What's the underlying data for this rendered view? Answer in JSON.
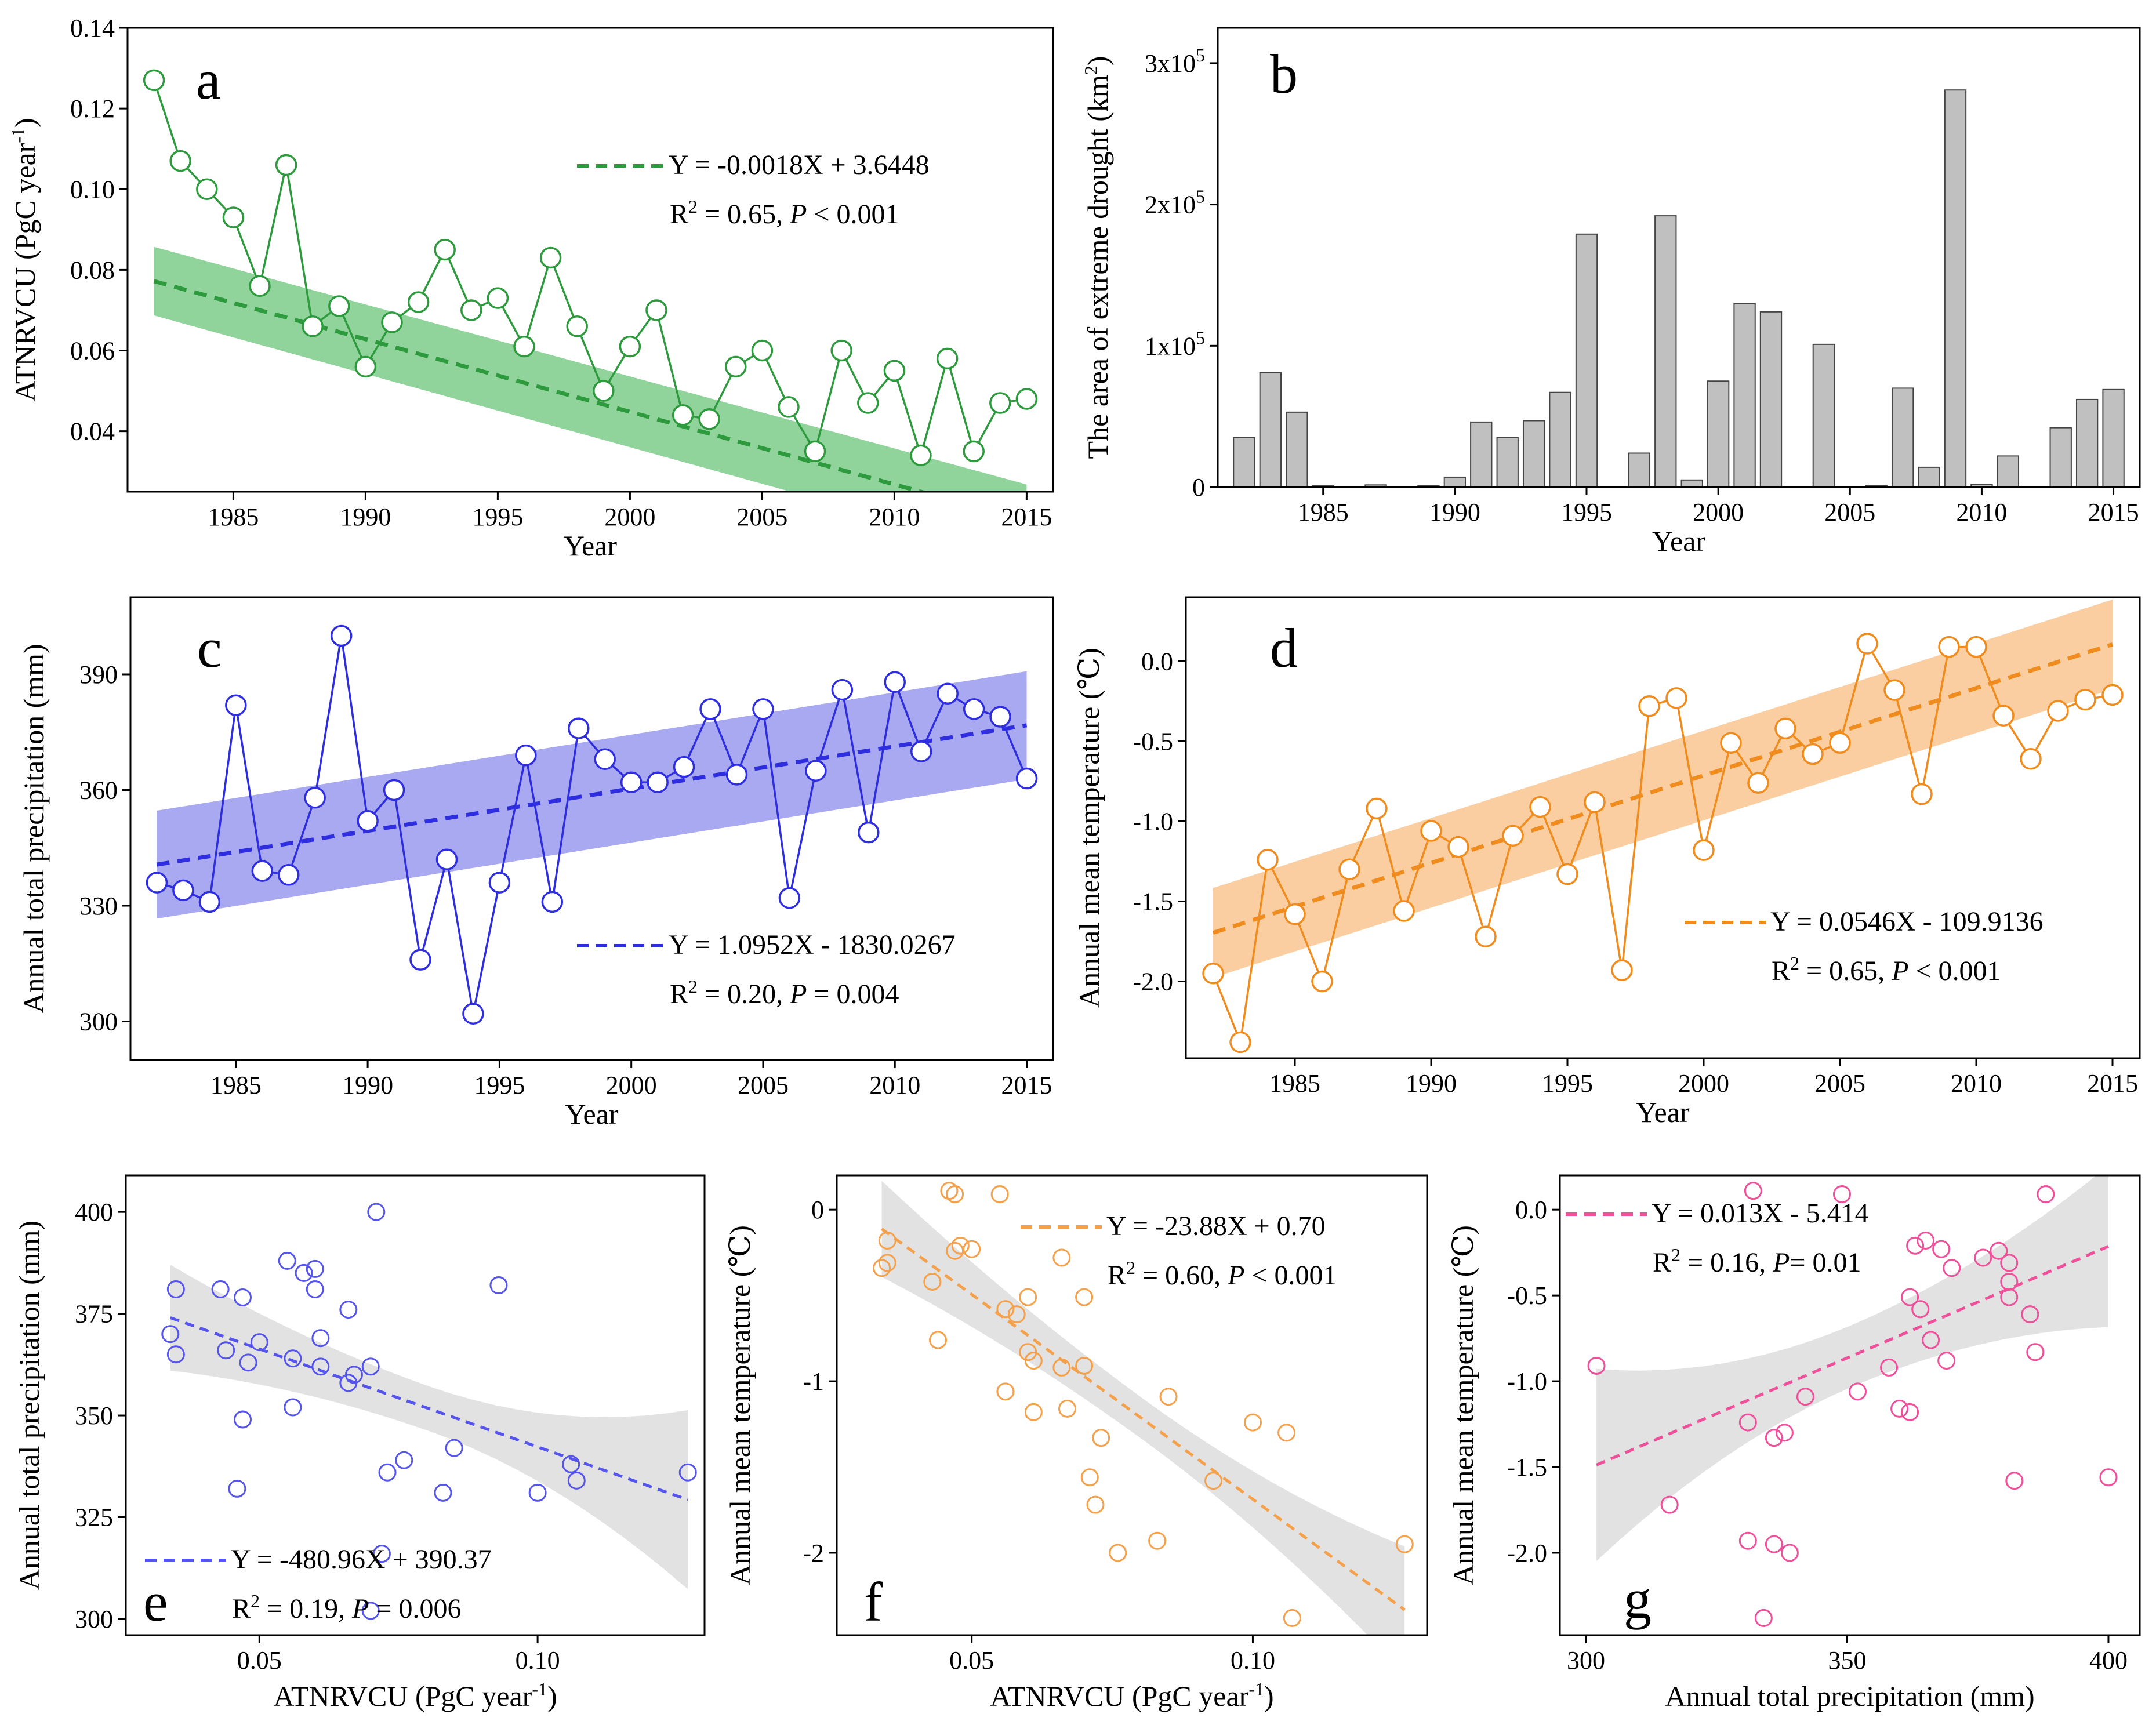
{
  "chart_data": [
    {
      "panel": "a",
      "type": "line",
      "x": [
        1982,
        1983,
        1984,
        1985,
        1986,
        1987,
        1988,
        1989,
        1990,
        1991,
        1992,
        1993,
        1994,
        1995,
        1996,
        1997,
        1998,
        1999,
        2000,
        2001,
        2002,
        2003,
        2004,
        2005,
        2006,
        2007,
        2008,
        2009,
        2010,
        2011,
        2012,
        2013,
        2014,
        2015
      ],
      "y": [
        0.127,
        0.107,
        0.1,
        0.093,
        0.076,
        0.106,
        0.066,
        0.071,
        0.056,
        0.067,
        0.072,
        0.085,
        0.07,
        0.073,
        0.061,
        0.083,
        0.066,
        0.05,
        0.061,
        0.07,
        0.044,
        0.043,
        0.056,
        0.06,
        0.046,
        0.035,
        0.06,
        0.047,
        0.055,
        0.034,
        0.058,
        0.035,
        0.047,
        0.048
      ],
      "color": "#2e9a3e",
      "band_color": "#7ccc8a",
      "fit": {
        "slope": -0.0018,
        "intercept": 3.6448,
        "band": [
          0.0085,
          0.009
        ]
      },
      "xlabel": "Year",
      "ylabel": "ATNRVCU (PgC year",
      "ylabel_sup": "-1",
      "ylabel_end": ")",
      "xlim": [
        1981,
        2016
      ],
      "ylim": [
        0.025,
        0.14
      ],
      "xticks": [
        1985,
        1990,
        1995,
        2000,
        2005,
        2010,
        2015
      ],
      "yticks": [
        "0.04",
        "0.06",
        "0.08",
        "0.10",
        "0.12",
        "0.14"
      ],
      "eq": {
        "line1": "Y = -0.0018X + 3.6448",
        "r2_pre": "R",
        "r2_sup": "2",
        "r2_mid": " = 0.65, ",
        "p": "P",
        "p_val": " < 0.001"
      }
    },
    {
      "panel": "b",
      "type": "bar",
      "x": [
        1982,
        1983,
        1984,
        1985,
        1986,
        1987,
        1988,
        1989,
        1990,
        1991,
        1992,
        1993,
        1994,
        1995,
        1996,
        1997,
        1998,
        1999,
        2000,
        2001,
        2002,
        2003,
        2004,
        2005,
        2006,
        2007,
        2008,
        2009,
        2010,
        2011,
        2012,
        2013,
        2014,
        2015
      ],
      "values": [
        35000,
        81000,
        53000,
        800,
        0,
        1500,
        0,
        1000,
        7000,
        46000,
        35000,
        47000,
        67000,
        179000,
        0,
        24000,
        192000,
        5000,
        75000,
        130000,
        124000,
        0,
        101000,
        0,
        1000,
        70000,
        14000,
        281000,
        2000,
        22000,
        0,
        42000,
        62000,
        69000
      ],
      "color": "#c0c0c0",
      "xlabel": "Year",
      "ylabel": "The area of extreme drought (km",
      "ylabel_sup": "2",
      "ylabel_end": ")",
      "xlim": [
        1981,
        2016
      ],
      "ylim": [
        0,
        325000
      ],
      "xticks": [
        1985,
        1990,
        1995,
        2000,
        2005,
        2010,
        2015
      ],
      "yticks": [
        {
          "value": 0,
          "base": "0",
          "exp": ""
        },
        {
          "value": 100000,
          "base": "1x10",
          "exp": "5"
        },
        {
          "value": 200000,
          "base": "2x10",
          "exp": "5"
        },
        {
          "value": 300000,
          "base": "3x10",
          "exp": "5"
        }
      ]
    },
    {
      "panel": "c",
      "type": "line",
      "x": [
        1982,
        1983,
        1984,
        1985,
        1986,
        1987,
        1988,
        1989,
        1990,
        1991,
        1992,
        1993,
        1994,
        1995,
        1996,
        1997,
        1998,
        1999,
        2000,
        2001,
        2002,
        2003,
        2004,
        2005,
        2006,
        2007,
        2008,
        2009,
        2010,
        2011,
        2012,
        2013,
        2014,
        2015
      ],
      "y": [
        336,
        334,
        331,
        382,
        339,
        338,
        358,
        400,
        352,
        360,
        316,
        342,
        302,
        336,
        369,
        331,
        376,
        368,
        362,
        362,
        366,
        381,
        364,
        381,
        332,
        365,
        386,
        349,
        388,
        370,
        385,
        381,
        379,
        363
      ],
      "color": "#2e2ee0",
      "band_color": "#9a9aee",
      "fit": {
        "slope": 1.0952,
        "intercept": -1830.0267,
        "band": [
          14,
          14
        ]
      },
      "xlabel": "Year",
      "ylabel": "Annual total precipitation (mm)",
      "xlim": [
        1981,
        2016
      ],
      "ylim": [
        290,
        410
      ],
      "xticks": [
        1985,
        1990,
        1995,
        2000,
        2005,
        2010,
        2015
      ],
      "yticks": [
        "300",
        "330",
        "360",
        "390"
      ],
      "eq": {
        "line1": "Y = 1.0952X - 1830.0267",
        "r2_pre": "R",
        "r2_sup": "2",
        "r2_mid": " = 0.20, ",
        "p": "P",
        "p_val": " = 0.004"
      }
    },
    {
      "panel": "d",
      "type": "line",
      "x": [
        1982,
        1983,
        1984,
        1985,
        1986,
        1987,
        1988,
        1989,
        1990,
        1991,
        1992,
        1993,
        1994,
        1995,
        1996,
        1997,
        1998,
        1999,
        2000,
        2001,
        2002,
        2003,
        2004,
        2005,
        2006,
        2007,
        2008,
        2009,
        2010,
        2011,
        2012,
        2013,
        2014,
        2015
      ],
      "y": [
        -1.95,
        -2.38,
        -1.24,
        -1.58,
        -2.0,
        -1.3,
        -0.92,
        -1.56,
        -1.06,
        -1.16,
        -1.72,
        -1.09,
        -0.91,
        -1.33,
        -0.88,
        -1.93,
        -0.28,
        -0.23,
        -1.18,
        -0.51,
        -0.76,
        -0.42,
        -0.58,
        -0.51,
        0.11,
        -0.18,
        -0.83,
        0.09,
        0.09,
        -0.34,
        -0.61,
        -0.31,
        -0.24,
        -0.21
      ],
      "color": "#f08c1e",
      "band_color": "#f9c590",
      "fit": {
        "slope": 0.0546,
        "intercept": -109.9136,
        "band": [
          0.28,
          0.28
        ]
      },
      "xlabel": "Year",
      "ylabel": "Annual mean temperature (℃)",
      "xlim": [
        1981,
        2016
      ],
      "ylim": [
        -2.48,
        0.4
      ],
      "xticks": [
        1985,
        1990,
        1995,
        2000,
        2005,
        2010,
        2015
      ],
      "yticks": [
        "-2.0",
        "-1.5",
        "-1.0",
        "-0.5",
        "0.0"
      ],
      "eq": {
        "line1": "Y = 0.0546X - 109.9136",
        "r2_pre": "R",
        "r2_sup": "2",
        "r2_mid": " = 0.65, ",
        "p": "P",
        "p_val": " < 0.001"
      }
    },
    {
      "panel": "e",
      "type": "scatter",
      "x": [
        0.127,
        0.107,
        0.1,
        0.093,
        0.076,
        0.106,
        0.066,
        0.071,
        0.056,
        0.067,
        0.072,
        0.085,
        0.07,
        0.073,
        0.061,
        0.083,
        0.066,
        0.05,
        0.061,
        0.07,
        0.044,
        0.043,
        0.056,
        0.06,
        0.046,
        0.035,
        0.06,
        0.047,
        0.055,
        0.034,
        0.058,
        0.035,
        0.047,
        0.048
      ],
      "y": [
        336,
        334,
        331,
        382,
        339,
        338,
        358,
        400,
        352,
        360,
        316,
        342,
        302,
        336,
        369,
        331,
        376,
        368,
        362,
        362,
        366,
        381,
        364,
        381,
        332,
        365,
        386,
        349,
        388,
        370,
        385,
        381,
        379,
        363
      ],
      "color": "#5555ee",
      "band_color": "#e2e2e2",
      "fit": {
        "slope": -480.96,
        "intercept": 390.37,
        "x0": 0.034,
        "x1": 0.127,
        "band0": 13,
        "bandmid": 5.5,
        "band1": 22
      },
      "xlabel": "ATNRVCU (PgC year",
      "xlabel_sup": "-1",
      "xlabel_end": ")",
      "ylabel": "Annual total precipitation (mm)",
      "xlim": [
        0.026,
        0.13
      ],
      "ylim": [
        296,
        409
      ],
      "xticks": [
        "0.05",
        "0.10"
      ],
      "yticks": [
        "300",
        "325",
        "350",
        "375",
        "400"
      ],
      "eq": {
        "line1": "Y = -480.96X + 390.37",
        "r2_pre": "R",
        "r2_sup": "2",
        "r2_mid": " = 0.19, ",
        "p": "P",
        "p_val": " = 0.006"
      }
    },
    {
      "panel": "f",
      "type": "scatter",
      "x": [
        0.127,
        0.107,
        0.1,
        0.093,
        0.076,
        0.106,
        0.066,
        0.071,
        0.056,
        0.067,
        0.072,
        0.085,
        0.07,
        0.073,
        0.061,
        0.083,
        0.066,
        0.05,
        0.061,
        0.07,
        0.044,
        0.043,
        0.056,
        0.06,
        0.046,
        0.035,
        0.06,
        0.047,
        0.055,
        0.034,
        0.058,
        0.035,
        0.047,
        0.048
      ],
      "y": [
        -1.95,
        -2.38,
        -1.24,
        -1.58,
        -2.0,
        -1.3,
        -0.92,
        -1.56,
        -1.06,
        -1.16,
        -1.72,
        -1.09,
        -0.91,
        -1.33,
        -0.88,
        -1.93,
        -0.28,
        -0.23,
        -1.18,
        -0.51,
        -0.76,
        -0.42,
        -0.58,
        -0.51,
        0.11,
        -0.18,
        -0.83,
        0.09,
        0.09,
        -0.34,
        -0.61,
        -0.31,
        -0.24,
        -0.21
      ],
      "color": "#f5a04a",
      "band_color": "#e2e2e2",
      "fit": {
        "slope": -23.88,
        "intercept": 0.7,
        "x0": 0.034,
        "x1": 0.127,
        "band0": 0.28,
        "bandmid": 0.12,
        "band1": 0.37
      },
      "xlabel": "ATNRVCU (PgC year",
      "xlabel_sup": "-1",
      "xlabel_end": ")",
      "ylabel": "Annual mean temperature (℃)",
      "xlim": [
        0.026,
        0.131
      ],
      "ylim": [
        -2.48,
        0.2
      ],
      "xticks": [
        "0.05",
        "0.10"
      ],
      "yticks": [
        "-2",
        "-1",
        "0"
      ],
      "eq": {
        "line1": "Y = -23.88X + 0.70",
        "r2_pre": "R",
        "r2_sup": "2",
        "r2_mid": " = 0.60, ",
        "p": "P",
        "p_val": " < 0.001"
      }
    },
    {
      "panel": "g",
      "type": "scatter",
      "x": [
        336,
        334,
        331,
        382,
        339,
        338,
        358,
        400,
        352,
        360,
        316,
        342,
        302,
        336,
        369,
        331,
        376,
        368,
        362,
        362,
        366,
        381,
        364,
        381,
        332,
        365,
        386,
        349,
        388,
        370,
        385,
        381,
        379,
        363
      ],
      "y": [
        -1.95,
        -2.38,
        -1.24,
        -1.58,
        -2.0,
        -1.3,
        -0.92,
        -1.56,
        -1.06,
        -1.16,
        -1.72,
        -1.09,
        -0.91,
        -1.33,
        -0.88,
        -1.93,
        -0.28,
        -0.23,
        -1.18,
        -0.51,
        -0.76,
        -0.42,
        -0.58,
        -0.51,
        0.11,
        -0.18,
        -0.83,
        0.09,
        0.09,
        -0.34,
        -0.61,
        -0.31,
        -0.24,
        -0.21
      ],
      "color": "#f0509a",
      "band_color": "#e2e2e2",
      "fit": {
        "slope": 0.013,
        "intercept": -5.414,
        "x0": 302,
        "x1": 400,
        "band0": 0.56,
        "bandmid": 0.18,
        "band1": 0.47
      },
      "xlabel": "Annual total precipitation (mm)",
      "ylabel": "Annual mean temperature (℃)",
      "xlim": [
        295,
        406
      ],
      "ylim": [
        -2.48,
        0.2
      ],
      "xticks": [
        "300",
        "350",
        "400"
      ],
      "yticks": [
        "-2.0",
        "-1.5",
        "-1.0",
        "-0.5",
        "0.0"
      ],
      "eq": {
        "line1": "Y = 0.013X - 5.414",
        "r2_pre": "R",
        "r2_sup": "2",
        "r2_mid": " = 0.16, ",
        "p": "P",
        "p_val": "= 0.01"
      }
    }
  ]
}
